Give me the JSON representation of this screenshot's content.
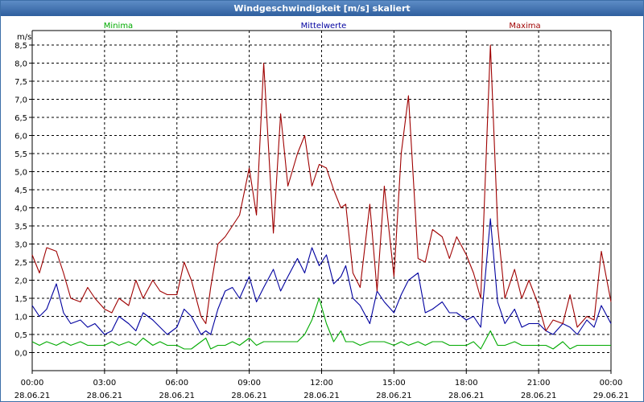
{
  "window": {
    "title": "Windgeschwindigkeit [m/s] skaliert"
  },
  "colors": {
    "min": "#00aa00",
    "mean": "#00009f",
    "max": "#9f0000",
    "grid": "#000000"
  },
  "chart_data": {
    "type": "line",
    "title": "Windgeschwindigkeit [m/s] skaliert",
    "ylabel": "m/s",
    "xlabel": "",
    "ylim": [
      -0.5,
      8.9
    ],
    "xlim": [
      0,
      24
    ],
    "grid": true,
    "yticks": [
      "0,0",
      "0,5",
      "1,0",
      "1,5",
      "2,0",
      "2,5",
      "3,0",
      "3,5",
      "4,0",
      "4,5",
      "5,0",
      "5,5",
      "6,0",
      "6,5",
      "7,0",
      "7,5",
      "8,0",
      "8,5"
    ],
    "xticks": [
      {
        "time": "00:00",
        "date": "28.06.21"
      },
      {
        "time": "03:00",
        "date": "28.06.21"
      },
      {
        "time": "06:00",
        "date": "28.06.21"
      },
      {
        "time": "09:00",
        "date": "28.06.21"
      },
      {
        "time": "12:00",
        "date": "28.06.21"
      },
      {
        "time": "15:00",
        "date": "28.06.21"
      },
      {
        "time": "18:00",
        "date": "28.06.21"
      },
      {
        "time": "21:00",
        "date": "28.06.21"
      },
      {
        "time": "00:00",
        "date": "29.06.21"
      }
    ],
    "series": [
      {
        "name": "Minima",
        "color": "#00aa00",
        "x": [
          0,
          0.3,
          0.6,
          1,
          1.3,
          1.6,
          2,
          2.3,
          2.6,
          3,
          3.3,
          3.6,
          4,
          4.3,
          4.6,
          5,
          5.3,
          5.6,
          6,
          6.3,
          6.6,
          7,
          7.2,
          7.4,
          7.7,
          8,
          8.3,
          8.6,
          9,
          9.3,
          9.6,
          10,
          10.3,
          10.6,
          11,
          11.3,
          11.6,
          11.9,
          12.2,
          12.5,
          12.8,
          13,
          13.3,
          13.6,
          14,
          14.3,
          14.6,
          15,
          15.3,
          15.6,
          16,
          16.3,
          16.6,
          17,
          17.3,
          17.6,
          18,
          18.3,
          18.6,
          19,
          19.3,
          19.6,
          20,
          20.3,
          20.6,
          21,
          21.3,
          21.6,
          22,
          22.3,
          22.6,
          23,
          23.3,
          23.6,
          24
        ],
        "values": [
          0.3,
          0.2,
          0.3,
          0.2,
          0.3,
          0.2,
          0.3,
          0.2,
          0.2,
          0.2,
          0.3,
          0.2,
          0.3,
          0.2,
          0.4,
          0.2,
          0.3,
          0.2,
          0.2,
          0.1,
          0.1,
          0.3,
          0.4,
          0.1,
          0.2,
          0.2,
          0.3,
          0.2,
          0.4,
          0.2,
          0.3,
          0.3,
          0.3,
          0.3,
          0.3,
          0.5,
          0.9,
          1.5,
          0.8,
          0.3,
          0.6,
          0.3,
          0.3,
          0.2,
          0.3,
          0.3,
          0.3,
          0.2,
          0.3,
          0.2,
          0.3,
          0.2,
          0.3,
          0.3,
          0.2,
          0.2,
          0.2,
          0.3,
          0.1,
          0.6,
          0.2,
          0.2,
          0.3,
          0.2,
          0.2,
          0.2,
          0.2,
          0.1,
          0.3,
          0.1,
          0.2,
          0.2,
          0.2,
          0.2,
          0.2
        ]
      },
      {
        "name": "Mittelwerte",
        "color": "#00009f",
        "x": [
          0,
          0.3,
          0.6,
          1,
          1.3,
          1.6,
          2,
          2.3,
          2.6,
          3,
          3.3,
          3.6,
          4,
          4.3,
          4.6,
          5,
          5.3,
          5.6,
          6,
          6.3,
          6.6,
          7,
          7.2,
          7.4,
          7.7,
          8,
          8.3,
          8.6,
          9,
          9.3,
          9.6,
          10,
          10.3,
          10.6,
          11,
          11.3,
          11.6,
          11.9,
          12.2,
          12.5,
          12.8,
          13,
          13.3,
          13.6,
          14,
          14.3,
          14.6,
          15,
          15.3,
          15.6,
          16,
          16.3,
          16.6,
          17,
          17.3,
          17.6,
          18,
          18.3,
          18.6,
          19,
          19.3,
          19.6,
          20,
          20.3,
          20.6,
          21,
          21.3,
          21.6,
          22,
          22.3,
          22.6,
          23,
          23.3,
          23.6,
          24
        ],
        "values": [
          1.3,
          1.0,
          1.2,
          1.9,
          1.1,
          0.8,
          0.9,
          0.7,
          0.8,
          0.5,
          0.6,
          1.0,
          0.8,
          0.6,
          1.1,
          0.9,
          0.7,
          0.5,
          0.7,
          1.2,
          1.0,
          0.5,
          0.6,
          0.5,
          1.2,
          1.7,
          1.8,
          1.5,
          2.1,
          1.4,
          1.8,
          2.3,
          1.7,
          2.1,
          2.6,
          2.2,
          2.9,
          2.4,
          2.7,
          1.9,
          2.1,
          2.4,
          1.5,
          1.3,
          0.8,
          1.7,
          1.4,
          1.1,
          1.6,
          2.0,
          2.2,
          1.1,
          1.2,
          1.4,
          1.1,
          1.1,
          0.9,
          1.0,
          0.7,
          3.7,
          1.4,
          0.8,
          1.2,
          0.7,
          0.8,
          0.8,
          0.6,
          0.5,
          0.8,
          0.7,
          0.5,
          0.9,
          0.7,
          1.3,
          0.8
        ]
      },
      {
        "name": "Maxima",
        "color": "#9f0000",
        "x": [
          0,
          0.3,
          0.6,
          1,
          1.3,
          1.6,
          2,
          2.3,
          2.6,
          3,
          3.3,
          3.6,
          4,
          4.3,
          4.6,
          5,
          5.3,
          5.6,
          6,
          6.3,
          6.6,
          7,
          7.2,
          7.4,
          7.7,
          8,
          8.3,
          8.6,
          9,
          9.3,
          9.6,
          10,
          10.3,
          10.6,
          11,
          11.3,
          11.6,
          11.9,
          12.2,
          12.5,
          12.8,
          13,
          13.3,
          13.6,
          14,
          14.3,
          14.6,
          15,
          15.3,
          15.6,
          16,
          16.3,
          16.6,
          17,
          17.3,
          17.6,
          18,
          18.3,
          18.6,
          19,
          19.3,
          19.6,
          20,
          20.3,
          20.6,
          21,
          21.3,
          21.6,
          22,
          22.3,
          22.6,
          23,
          23.3,
          23.6,
          24
        ],
        "values": [
          2.7,
          2.2,
          2.9,
          2.8,
          2.2,
          1.5,
          1.4,
          1.8,
          1.5,
          1.2,
          1.1,
          1.5,
          1.3,
          2.0,
          1.5,
          2.0,
          1.7,
          1.6,
          1.6,
          2.5,
          2.0,
          1.0,
          0.8,
          1.8,
          3.0,
          3.2,
          3.5,
          3.8,
          5.1,
          3.8,
          8.0,
          3.3,
          6.6,
          4.6,
          5.5,
          6.0,
          4.6,
          5.2,
          5.1,
          4.5,
          4.0,
          4.1,
          2.2,
          1.8,
          4.1,
          1.7,
          4.6,
          2.1,
          5.5,
          7.1,
          2.6,
          2.5,
          3.4,
          3.2,
          2.6,
          3.2,
          2.7,
          2.2,
          1.5,
          8.5,
          3.5,
          1.5,
          2.3,
          1.5,
          2.0,
          1.3,
          0.6,
          0.9,
          0.8,
          1.6,
          0.7,
          1.0,
          0.9,
          2.8,
          1.4
        ]
      }
    ]
  }
}
